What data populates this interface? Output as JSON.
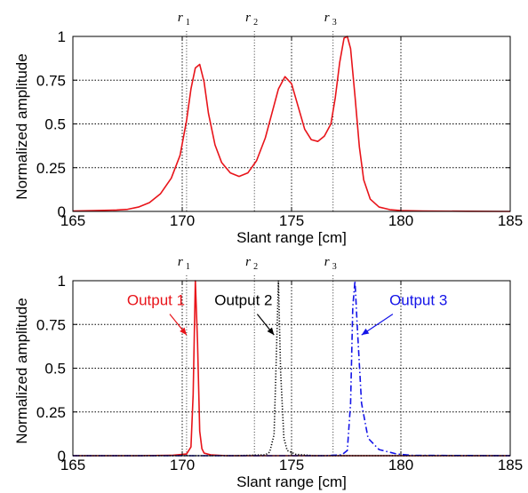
{
  "colors": {
    "red": "#e8141a",
    "black": "#000000",
    "blue": "#1414e8"
  },
  "chart_data": [
    {
      "type": "line",
      "xlabel": "Slant range [cm]",
      "ylabel": "Normalized amplitude",
      "xlim": [
        165,
        185
      ],
      "ylim": [
        0,
        1
      ],
      "xticks": [
        "165",
        "170",
        "175",
        "180",
        "185"
      ],
      "yticks": [
        "0",
        "0.25",
        "0.5",
        "0.75",
        "1"
      ],
      "grid": true,
      "markers": [
        {
          "label": "r",
          "sub": "1",
          "x": 170.2
        },
        {
          "label": "r",
          "sub": "2",
          "x": 173.3
        },
        {
          "label": "r",
          "sub": "3",
          "x": 176.9
        }
      ],
      "series": [
        {
          "color": "#e8141a",
          "style": "solid",
          "x": [
            165,
            166,
            167,
            167.5,
            168,
            168.5,
            169,
            169.5,
            169.9,
            170.2,
            170.4,
            170.6,
            170.8,
            171,
            171.2,
            171.5,
            171.8,
            172.2,
            172.6,
            173,
            173.4,
            173.8,
            174.1,
            174.4,
            174.7,
            175,
            175.3,
            175.6,
            175.9,
            176.2,
            176.5,
            176.8,
            177,
            177.2,
            177.4,
            177.55,
            177.7,
            177.9,
            178.1,
            178.3,
            178.6,
            179,
            179.5,
            180,
            181,
            183,
            185
          ],
          "y": [
            0.002,
            0.005,
            0.008,
            0.012,
            0.025,
            0.05,
            0.1,
            0.19,
            0.32,
            0.52,
            0.7,
            0.82,
            0.84,
            0.74,
            0.56,
            0.38,
            0.28,
            0.22,
            0.2,
            0.22,
            0.29,
            0.42,
            0.56,
            0.7,
            0.77,
            0.73,
            0.6,
            0.47,
            0.41,
            0.4,
            0.43,
            0.5,
            0.65,
            0.85,
            0.99,
            1.0,
            0.93,
            0.66,
            0.37,
            0.18,
            0.07,
            0.025,
            0.01,
            0.005,
            0.002,
            0.001,
            0.0
          ]
        }
      ]
    },
    {
      "type": "line",
      "xlabel": "Slant range [cm]",
      "ylabel": "Normalized amplitude",
      "xlim": [
        165,
        185
      ],
      "ylim": [
        0,
        1
      ],
      "xticks": [
        "165",
        "170",
        "175",
        "180",
        "185"
      ],
      "yticks": [
        "0",
        "0.25",
        "0.5",
        "0.75",
        "1"
      ],
      "grid": true,
      "markers": [
        {
          "label": "r",
          "sub": "1",
          "x": 170.2
        },
        {
          "label": "r",
          "sub": "2",
          "x": 173.3
        },
        {
          "label": "r",
          "sub": "3",
          "x": 176.9
        }
      ],
      "annotations": [
        {
          "text": "Output 1",
          "color": "#e8141a",
          "tx": 168.8,
          "ty": 0.86,
          "ax": 170.2,
          "ay": 0.69
        },
        {
          "text": "Output 2",
          "color": "#000000",
          "tx": 172.8,
          "ty": 0.86,
          "ax": 174.2,
          "ay": 0.69
        },
        {
          "text": "Output 3",
          "color": "#1414e8",
          "tx": 180.8,
          "ty": 0.86,
          "ax": 178.2,
          "ay": 0.69
        }
      ],
      "series": [
        {
          "name": "Output 1",
          "color": "#e8141a",
          "style": "solid",
          "x": [
            165,
            168,
            169.5,
            170.2,
            170.4,
            170.5,
            170.6,
            170.7,
            170.8,
            170.9,
            171,
            171.3,
            172,
            185
          ],
          "y": [
            0.0,
            0.0,
            0.002,
            0.01,
            0.05,
            0.35,
            1.0,
            0.65,
            0.14,
            0.04,
            0.015,
            0.005,
            0.0,
            0.0
          ]
        },
        {
          "name": "Output 2",
          "color": "#000000",
          "style": "dotted",
          "x": [
            165,
            172.5,
            173.8,
            174.0,
            174.2,
            174.3,
            174.4,
            174.5,
            174.65,
            174.8,
            175.2,
            176,
            185
          ],
          "y": [
            0.0,
            0.0,
            0.005,
            0.02,
            0.12,
            0.55,
            1.0,
            0.48,
            0.1,
            0.03,
            0.008,
            0.0,
            0.0
          ]
        },
        {
          "name": "Output 3",
          "color": "#1414e8",
          "style": "dashdot",
          "x": [
            165,
            176.5,
            177.3,
            177.55,
            177.7,
            177.8,
            177.9,
            178.0,
            178.2,
            178.5,
            179,
            179.8,
            180.5,
            185
          ],
          "y": [
            0.0,
            0.0,
            0.005,
            0.03,
            0.3,
            0.85,
            1.0,
            0.75,
            0.3,
            0.1,
            0.035,
            0.01,
            0.002,
            0.0
          ]
        }
      ]
    }
  ]
}
